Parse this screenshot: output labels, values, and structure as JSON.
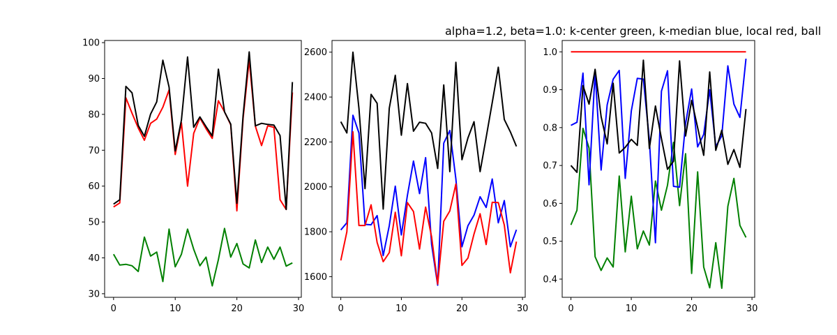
{
  "figure": {
    "title": "alpha=1.2, beta=1.0: k-center green, k-median blue, local red, ball"
  },
  "chart_data": [
    {
      "type": "line",
      "xlim": [
        -1.45,
        30.45
      ],
      "ylim": [
        29.0,
        100.6
      ],
      "xticks": [
        0,
        10,
        20,
        30
      ],
      "yticks": [
        30,
        40,
        50,
        60,
        70,
        80,
        90,
        100
      ],
      "grid": false,
      "series": [
        {
          "color": "#008000",
          "values": [
            41,
            38,
            38.2,
            37.8,
            36.2,
            45.8,
            40.5,
            41.6,
            33.4,
            48,
            37.5,
            41,
            48,
            42.4,
            37.8,
            40.2,
            32.2,
            39.5,
            48.2,
            40.2,
            44,
            38.3,
            37.2,
            45,
            38.7,
            43,
            39.6,
            43,
            37.7,
            38.6
          ]
        },
        {
          "color": "#ff0000",
          "values": [
            54.2,
            55.3,
            84.6,
            80.3,
            76.2,
            72.8,
            77.5,
            78.7,
            82,
            86.8,
            68.8,
            77.7,
            60,
            74.7,
            79,
            76,
            73.3,
            83.8,
            80.7,
            77.1,
            53.1,
            78.8,
            95.2,
            76.7,
            71.3,
            76.8,
            76.4,
            56.2,
            53.5,
            86.1
          ]
        },
        {
          "color": "#000000",
          "values": [
            55,
            56.2,
            87.8,
            86,
            76.9,
            73.9,
            80.1,
            83.5,
            95.1,
            87.6,
            69.8,
            78.4,
            96,
            76.4,
            79.3,
            76.6,
            74,
            92.6,
            80.7,
            77.3,
            55.2,
            79.6,
            97.4,
            76.8,
            77.5,
            77.2,
            77,
            74.1,
            53.5,
            89
          ]
        }
      ]
    },
    {
      "type": "line",
      "xlim": [
        -1.45,
        30.45
      ],
      "ylim": [
        1508,
        2652
      ],
      "xticks": [
        0,
        10,
        20,
        30
      ],
      "yticks": [
        1600,
        1800,
        2000,
        2200,
        2400,
        2600
      ],
      "grid": false,
      "series": [
        {
          "color": "#0000ff",
          "values": [
            1808,
            1840,
            2319,
            2240,
            1833,
            1831,
            1872,
            1694,
            1827,
            2003,
            1786,
            1962,
            2115,
            1970,
            2130,
            1743,
            1562,
            2195,
            2251,
            2035,
            1733,
            1827,
            1874,
            1956,
            1908,
            2035,
            1840,
            1939,
            1733,
            1809
          ]
        },
        {
          "color": "#ff0000",
          "values": [
            1672,
            1800,
            2245,
            1828,
            1828,
            1920,
            1752,
            1667,
            1707,
            1887,
            1693,
            1930,
            1890,
            1723,
            1910,
            1777,
            1567,
            1847,
            1893,
            2013,
            1650,
            1683,
            1790,
            1880,
            1743,
            1931,
            1930,
            1830,
            1617,
            1756
          ]
        },
        {
          "color": "#000000",
          "values": [
            2290,
            2240,
            2600,
            2350,
            1992,
            2412,
            2372,
            1901,
            2350,
            2497,
            2230,
            2460,
            2248,
            2288,
            2283,
            2240,
            2082,
            2454,
            2068,
            2555,
            2121,
            2218,
            2290,
            2068,
            2220,
            2375,
            2533,
            2300,
            2245,
            2180
          ]
        }
      ]
    },
    {
      "type": "line",
      "xlim": [
        -1.45,
        30.45
      ],
      "ylim": [
        0.352,
        1.03
      ],
      "xticks": [
        0,
        10,
        20,
        30
      ],
      "yticks": [
        0.4,
        0.5,
        0.6,
        0.7,
        0.8,
        0.9,
        1.0
      ],
      "grid": false,
      "series": [
        {
          "color": "#008000",
          "values": [
            0.543,
            0.582,
            0.798,
            0.746,
            0.459,
            0.423,
            0.456,
            0.432,
            0.672,
            0.472,
            0.619,
            0.48,
            0.527,
            0.49,
            0.659,
            0.582,
            0.648,
            0.761,
            0.594,
            0.731,
            0.415,
            0.683,
            0.432,
            0.377,
            0.496,
            0.376,
            0.592,
            0.666,
            0.542,
            0.51
          ]
        },
        {
          "color": "#0000ff",
          "values": [
            0.806,
            0.814,
            0.944,
            0.649,
            0.947,
            0.688,
            0.86,
            0.928,
            0.951,
            0.666,
            0.844,
            0.93,
            0.928,
            0.767,
            0.496,
            0.896,
            0.95,
            0.645,
            0.643,
            0.811,
            0.902,
            0.749,
            0.782,
            0.9,
            0.75,
            0.778,
            0.963,
            0.862,
            0.827,
            0.982
          ]
        },
        {
          "color": "#ff0000",
          "values": [
            1.0,
            1.0,
            1.0,
            1.0,
            1.0,
            1.0,
            1.0,
            1.0,
            1.0,
            1.0,
            1.0,
            1.0,
            1.0,
            1.0,
            1.0,
            1.0,
            1.0,
            1.0,
            1.0,
            1.0,
            1.0,
            1.0,
            1.0,
            1.0,
            1.0,
            1.0,
            1.0,
            1.0,
            1.0,
            1.0
          ]
        },
        {
          "color": "#000000",
          "values": [
            0.7,
            0.682,
            0.911,
            0.862,
            0.954,
            0.829,
            0.757,
            0.917,
            0.733,
            0.748,
            0.769,
            0.753,
            0.978,
            0.745,
            0.857,
            0.771,
            0.69,
            0.711,
            0.976,
            0.778,
            0.872,
            0.8,
            0.727,
            0.947,
            0.74,
            0.793,
            0.703,
            0.742,
            0.695,
            0.849
          ]
        }
      ]
    }
  ]
}
